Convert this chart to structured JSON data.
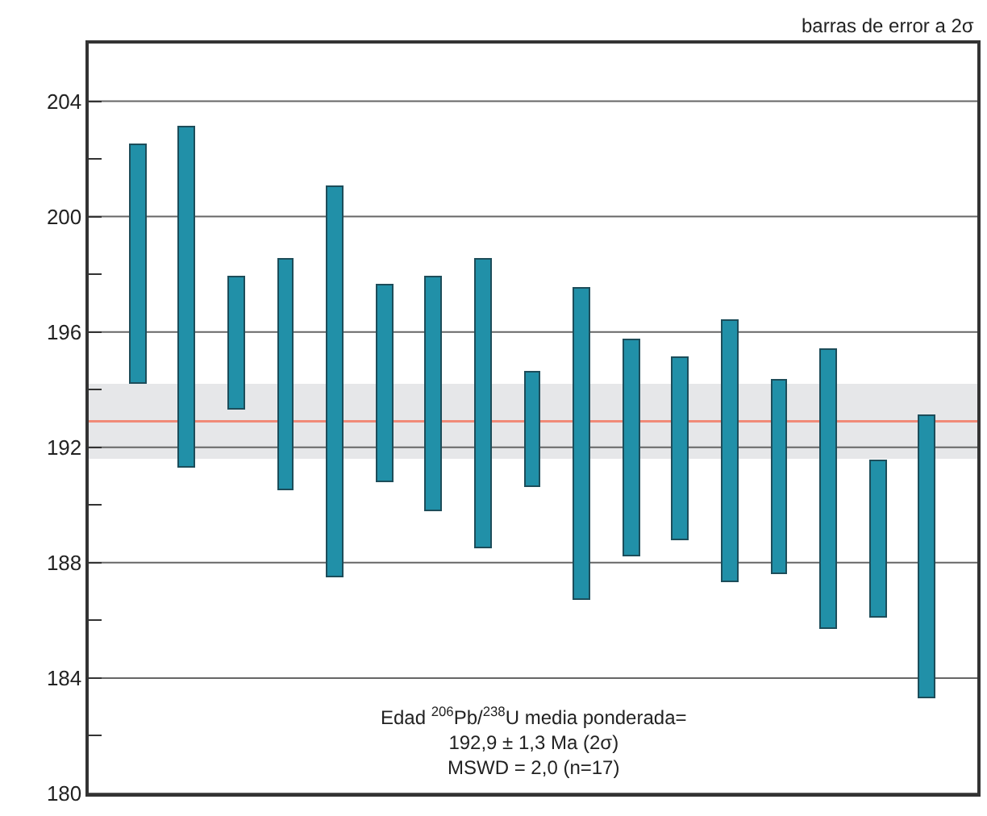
{
  "chart_data": {
    "type": "bar",
    "categories": [
      null,
      null,
      null,
      null,
      null,
      null,
      null,
      null,
      null,
      null,
      null,
      null,
      null,
      null,
      null,
      null,
      null
    ],
    "base": [
      194.2,
      191.3,
      193.3,
      190.5,
      187.5,
      190.8,
      189.8,
      188.5,
      190.6,
      186.7,
      188.2,
      188.8,
      187.3,
      187.6,
      185.7,
      186.1,
      183.3
    ],
    "values": [
      8.3,
      11.8,
      4.6,
      8.0,
      13.5,
      6.8,
      8.1,
      10.0,
      4.0,
      10.8,
      7.5,
      6.3,
      9.1,
      6.7,
      9.7,
      5.4,
      9.8
    ],
    "color": "#2190a8",
    "ylim": [
      180,
      206
    ],
    "yticks": [
      180,
      {
        "value": 182,
        "label": null
      },
      184,
      {
        "value": 186,
        "label": null
      },
      188,
      {
        "value": 190,
        "label": null
      },
      192,
      {
        "value": 194,
        "label": null
      },
      196,
      {
        "value": 198,
        "label": null
      },
      200,
      {
        "value": 202,
        "label": null
      },
      204
    ],
    "grid": "y",
    "ref_lines": [
      {
        "axis": "y",
        "value": 192.9,
        "color": "#f08a78"
      }
    ],
    "bands": [
      {
        "axis": "y",
        "from": 191.6,
        "to": 194.2,
        "color": "#e6e7e9"
      }
    ],
    "annotations": [
      "barras de error a 2σ",
      "Edad $^{206}$Pb/$^{238}$U media ponderada=\n192,9 ± 1,3 Ma (2σ)\nMSWD = 2,0 (n=17)"
    ]
  }
}
